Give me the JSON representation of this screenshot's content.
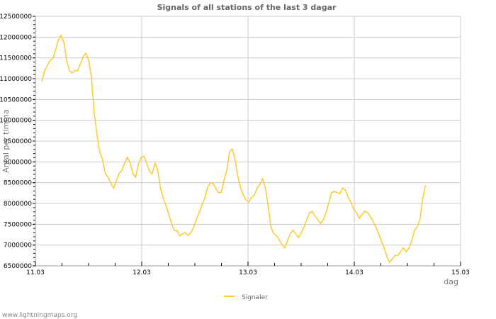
{
  "chart_data": {
    "type": "line",
    "title": "Signals of all stations of the last 3 dagar",
    "xlabel": "dag",
    "ylabel": "Antal per timma",
    "x_tick_labels": [
      "11.03",
      "12.03",
      "13.03",
      "14.03",
      "15.03"
    ],
    "xlim_days": [
      0,
      4
    ],
    "x_minor_step_days": 0.25,
    "y_tick_labels": [
      "6500000",
      "7000000",
      "7500000",
      "8000000",
      "8500000",
      "9000000",
      "9500000",
      "10000000",
      "10500000",
      "11000000",
      "11500000",
      "12000000",
      "12500000"
    ],
    "ylim": [
      6500000,
      12500000
    ],
    "y_minor_step": 100000,
    "grid": true,
    "legend_position": "bottom-center",
    "series": [
      {
        "name": "Signaler",
        "color": "#ffc92e",
        "x_range_days": [
          0.06,
          3.67
        ],
        "value_scale": 1000000,
        "values": [
          10.93,
          11.19,
          11.32,
          11.44,
          11.48,
          11.7,
          11.94,
          12.04,
          11.87,
          11.44,
          11.19,
          11.14,
          11.19,
          11.19,
          11.36,
          11.53,
          11.61,
          11.44,
          11.02,
          10.17,
          9.65,
          9.23,
          9.06,
          8.72,
          8.63,
          8.49,
          8.37,
          8.55,
          8.72,
          8.8,
          8.97,
          9.11,
          8.97,
          8.72,
          8.63,
          8.94,
          9.11,
          9.14,
          8.97,
          8.77,
          8.72,
          8.97,
          8.8,
          8.37,
          8.12,
          7.95,
          7.74,
          7.52,
          7.35,
          7.35,
          7.22,
          7.27,
          7.3,
          7.23,
          7.3,
          7.44,
          7.61,
          7.78,
          7.95,
          8.12,
          8.37,
          8.49,
          8.49,
          8.37,
          8.26,
          8.26,
          8.55,
          8.8,
          9.23,
          9.31,
          9.06,
          8.66,
          8.37,
          8.2,
          8.08,
          8.03,
          8.15,
          8.2,
          8.37,
          8.46,
          8.6,
          8.37,
          7.95,
          7.44,
          7.27,
          7.23,
          7.13,
          7.01,
          6.93,
          7.1,
          7.27,
          7.35,
          7.27,
          7.18,
          7.3,
          7.44,
          7.61,
          7.78,
          7.81,
          7.69,
          7.61,
          7.52,
          7.61,
          7.78,
          8.03,
          8.26,
          8.29,
          8.26,
          8.24,
          8.37,
          8.32,
          8.15,
          8.03,
          7.86,
          7.78,
          7.64,
          7.73,
          7.81,
          7.78,
          7.69,
          7.57,
          7.44,
          7.27,
          7.1,
          6.93,
          6.72,
          6.58,
          6.67,
          6.75,
          6.75,
          6.84,
          6.93,
          6.84,
          6.93,
          7.1,
          7.35,
          7.44,
          7.61,
          8.12,
          8.43
        ]
      }
    ]
  },
  "footer": "www.lightningmaps.org"
}
